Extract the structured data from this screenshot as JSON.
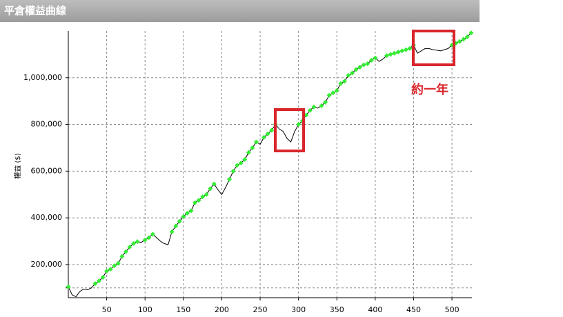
{
  "chart_data": {
    "type": "line",
    "title": "平倉權益曲線",
    "y_label": "權益 ($)",
    "annotation": "約一年",
    "x": [
      0,
      5,
      10,
      15,
      20,
      25,
      30,
      35,
      40,
      45,
      50,
      55,
      60,
      65,
      70,
      75,
      80,
      85,
      90,
      95,
      100,
      105,
      110,
      115,
      120,
      125,
      130,
      135,
      140,
      145,
      150,
      155,
      160,
      165,
      170,
      175,
      180,
      185,
      190,
      195,
      200,
      205,
      210,
      215,
      220,
      225,
      230,
      235,
      240,
      245,
      250,
      255,
      260,
      265,
      270,
      275,
      280,
      285,
      290,
      295,
      300,
      305,
      310,
      315,
      320,
      325,
      330,
      335,
      340,
      345,
      350,
      355,
      360,
      365,
      370,
      375,
      380,
      385,
      390,
      395,
      400,
      405,
      410,
      415,
      420,
      425,
      430,
      435,
      440,
      445,
      450,
      455,
      460,
      465,
      470,
      475,
      480,
      485,
      490,
      495,
      500,
      505,
      510,
      515,
      520,
      525
    ],
    "values": [
      105000,
      70000,
      62000,
      85000,
      95000,
      92000,
      100000,
      118000,
      130000,
      145000,
      172000,
      180000,
      195000,
      205000,
      235000,
      255000,
      275000,
      290000,
      298000,
      295000,
      305000,
      315000,
      330000,
      315000,
      300000,
      290000,
      285000,
      340000,
      365000,
      385000,
      405000,
      420000,
      430000,
      465000,
      475000,
      490000,
      500000,
      525000,
      545000,
      520000,
      500000,
      530000,
      565000,
      600000,
      625000,
      635000,
      650000,
      680000,
      700000,
      725000,
      715000,
      745000,
      760000,
      775000,
      800000,
      780000,
      770000,
      740000,
      725000,
      770000,
      800000,
      815000,
      840000,
      860000,
      875000,
      870000,
      880000,
      895000,
      925000,
      935000,
      945000,
      975000,
      985000,
      1010000,
      1020000,
      1035000,
      1045000,
      1055000,
      1060000,
      1075000,
      1085000,
      1070000,
      1080000,
      1095000,
      1100000,
      1105000,
      1110000,
      1115000,
      1120000,
      1125000,
      1140000,
      1105000,
      1115000,
      1125000,
      1125000,
      1120000,
      1118000,
      1115000,
      1120000,
      1125000,
      1140000,
      1148000,
      1155000,
      1165000,
      1175000,
      1192000
    ],
    "color": "#000000",
    "marker_color": "#33ee33",
    "xlim": [
      0,
      526
    ],
    "xticks": [
      50,
      100,
      150,
      200,
      250,
      300,
      350,
      400,
      450,
      500
    ],
    "ylim": [
      58000,
      1200000
    ],
    "yticks": [
      {
        "value": 100000,
        "label": null
      },
      {
        "value": 200000,
        "label": "200,000"
      },
      {
        "value": 400000,
        "label": "400,000"
      },
      {
        "value": 600000,
        "label": "600,000"
      },
      {
        "value": 800000,
        "label": "800,000"
      },
      {
        "value": 1000000,
        "label": "1,000,000"
      }
    ],
    "grid": true
  }
}
